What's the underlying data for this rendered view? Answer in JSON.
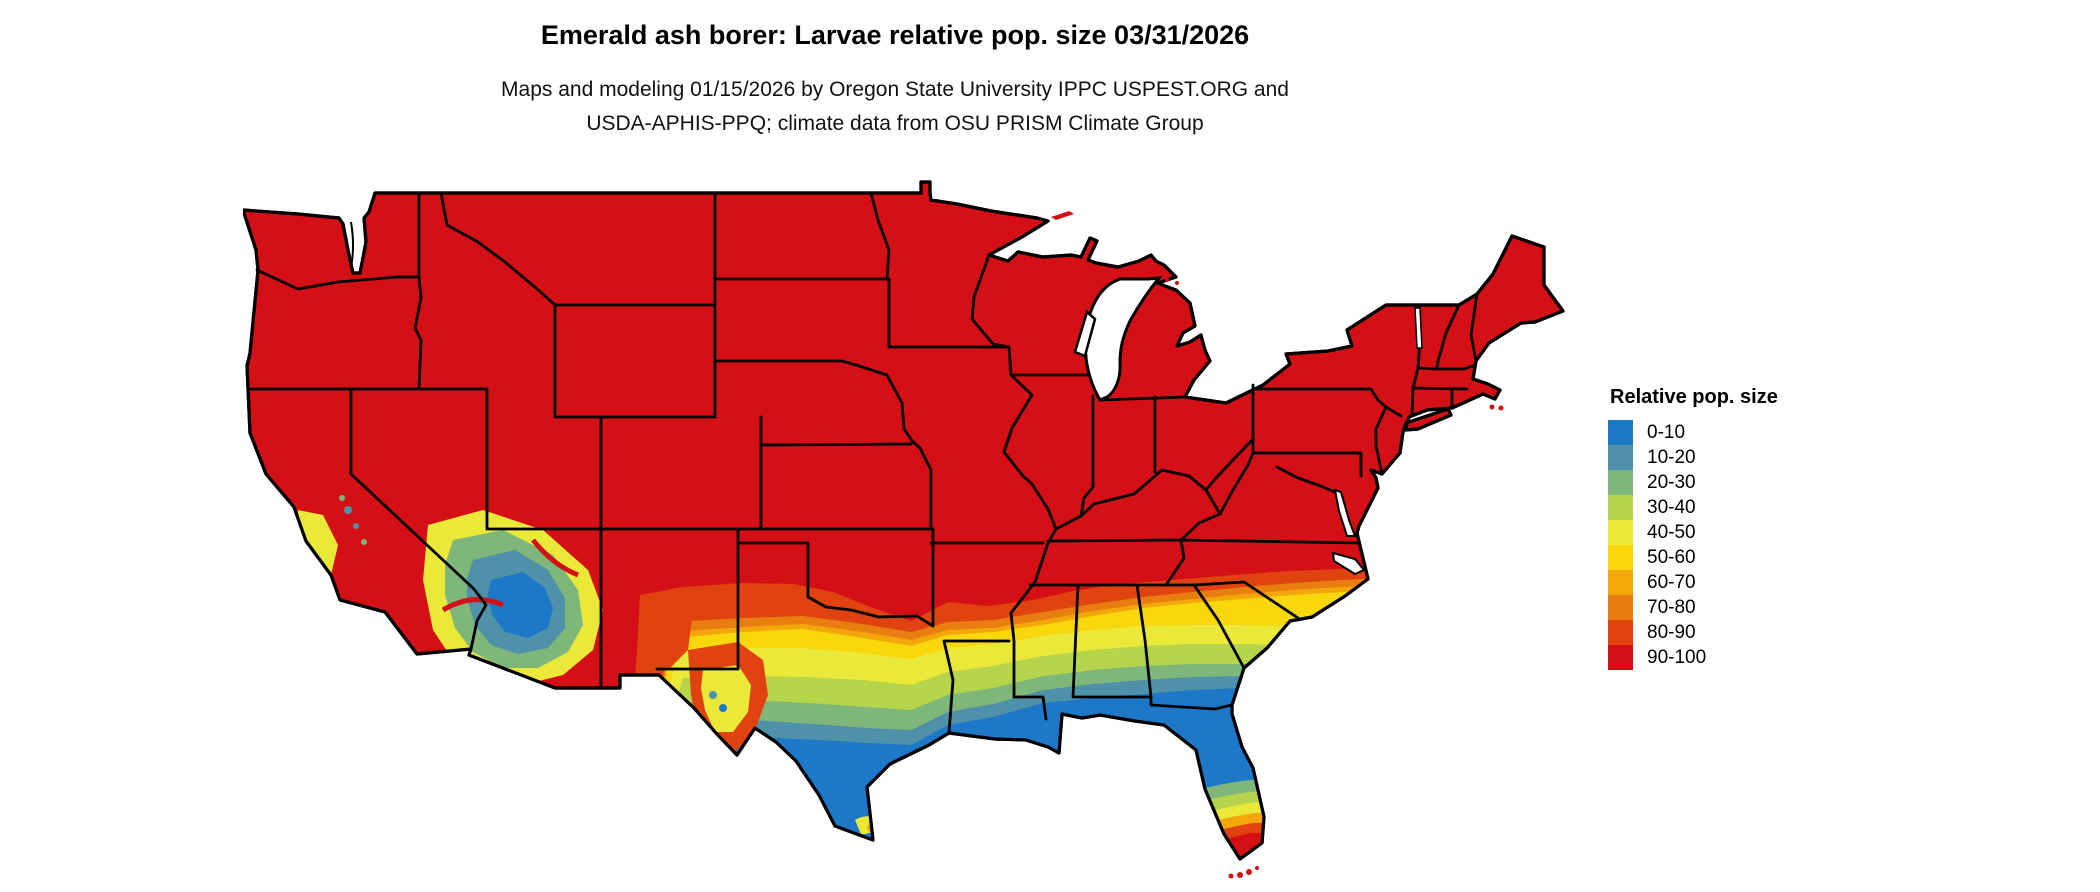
{
  "header": {
    "title": "Emerald ash borer: Larvae relative pop. size 03/31/2026",
    "subtitle_line1": "Maps and modeling 01/15/2026 by Oregon State University IPPC USPEST.ORG and",
    "subtitle_line2": "USDA-APHIS-PPQ; climate data from OSU PRISM Climate Group"
  },
  "legend": {
    "title": "Relative pop. size",
    "items": [
      {
        "label": "0-10",
        "color": "#1e78c8"
      },
      {
        "label": "10-20",
        "color": "#4f91a9"
      },
      {
        "label": "20-30",
        "color": "#7fb77a"
      },
      {
        "label": "30-40",
        "color": "#b6d44c"
      },
      {
        "label": "40-50",
        "color": "#eae93a"
      },
      {
        "label": "50-60",
        "color": "#f8d70c"
      },
      {
        "label": "60-70",
        "color": "#f3a70b"
      },
      {
        "label": "70-80",
        "color": "#e97e10"
      },
      {
        "label": "80-90",
        "color": "#e0430f"
      },
      {
        "label": "90-100",
        "color": "#d40f16"
      }
    ]
  },
  "map": {
    "area": "Contiguous United States",
    "base_color": "#d40f16",
    "border_color": "#000000",
    "water_color": "#ffffff"
  }
}
